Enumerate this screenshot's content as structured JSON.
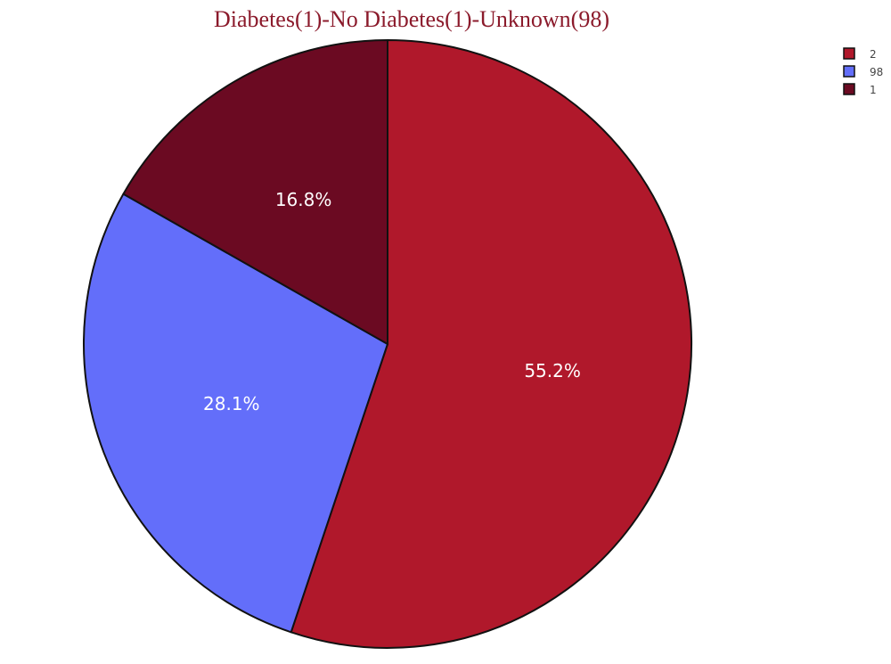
{
  "chart_data": {
    "type": "pie",
    "title": "Diabetes(1)-No Diabetes(1)-Unknown(98)",
    "slices": [
      {
        "label": "2",
        "value": 55.2,
        "text": "55.2%",
        "color": "#b0182b"
      },
      {
        "label": "98",
        "value": 28.1,
        "text": "28.1%",
        "color": "#636efa"
      },
      {
        "label": "1",
        "value": 16.8,
        "text": "16.8%",
        "color": "#6b0a22"
      }
    ],
    "legend": {
      "placement": "top-right",
      "entries": [
        "2",
        "98",
        "1"
      ]
    },
    "legend_colors": [
      "#b0182b",
      "#636efa",
      "#6b0a22"
    ],
    "direction": "clockwise",
    "stroke_color": "#111111"
  }
}
